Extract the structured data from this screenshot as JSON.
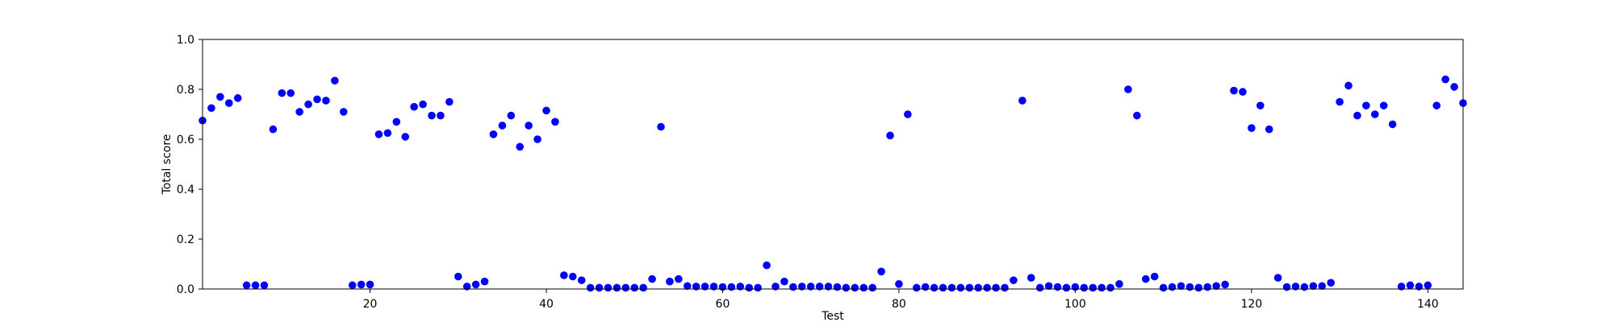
{
  "chart_data": {
    "type": "scatter",
    "title": "",
    "xlabel": "Test",
    "ylabel": "Total score",
    "xlim": [
      1,
      144
    ],
    "ylim": [
      0.0,
      1.0
    ],
    "xticks": [
      20,
      40,
      60,
      80,
      100,
      120,
      140
    ],
    "xtick_labels": [
      "20",
      "40",
      "60",
      "80",
      "100",
      "120",
      "140"
    ],
    "yticks": [
      0.0,
      0.2,
      0.4,
      0.6,
      0.8,
      1.0
    ],
    "ytick_labels": [
      "0.0",
      "0.2",
      "0.4",
      "0.6",
      "0.8",
      "1.0"
    ],
    "grid": false,
    "series": [
      {
        "name": "score",
        "color": "#0000ff",
        "x": [
          1,
          2,
          3,
          4,
          5,
          6,
          7,
          8,
          9,
          10,
          11,
          12,
          13,
          14,
          15,
          16,
          17,
          18,
          19,
          20,
          21,
          22,
          23,
          24,
          25,
          26,
          27,
          28,
          29,
          30,
          31,
          32,
          33,
          34,
          35,
          36,
          37,
          38,
          39,
          40,
          41,
          42,
          43,
          44,
          45,
          46,
          47,
          48,
          49,
          50,
          51,
          52,
          53,
          54,
          55,
          56,
          57,
          58,
          59,
          60,
          61,
          62,
          63,
          64,
          65,
          66,
          67,
          68,
          69,
          70,
          71,
          72,
          73,
          74,
          75,
          76,
          77,
          78,
          79,
          80,
          81,
          82,
          83,
          84,
          85,
          86,
          87,
          88,
          89,
          90,
          91,
          92,
          93,
          94,
          95,
          96,
          97,
          98,
          99,
          100,
          101,
          102,
          103,
          104,
          105,
          106,
          107,
          108,
          109,
          110,
          111,
          112,
          113,
          114,
          115,
          116,
          117,
          118,
          119,
          120,
          121,
          122,
          123,
          124,
          125,
          126,
          127,
          128,
          129,
          130,
          131,
          132,
          133,
          134,
          135,
          136,
          137,
          138,
          139,
          140,
          141,
          142,
          143,
          144
        ],
        "y": [
          0.675,
          0.725,
          0.77,
          0.745,
          0.765,
          0.015,
          0.015,
          0.015,
          0.64,
          0.785,
          0.785,
          0.71,
          0.74,
          0.76,
          0.755,
          0.835,
          0.71,
          0.015,
          0.018,
          0.018,
          0.62,
          0.625,
          0.67,
          0.61,
          0.73,
          0.74,
          0.695,
          0.695,
          0.75,
          0.05,
          0.01,
          0.018,
          0.03,
          0.62,
          0.655,
          0.695,
          0.57,
          0.655,
          0.6,
          0.715,
          0.67,
          0.055,
          0.05,
          0.035,
          0.005,
          0.005,
          0.005,
          0.005,
          0.005,
          0.005,
          0.005,
          0.04,
          0.65,
          0.03,
          0.04,
          0.012,
          0.01,
          0.01,
          0.01,
          0.008,
          0.008,
          0.01,
          0.005,
          0.005,
          0.095,
          0.01,
          0.03,
          0.008,
          0.01,
          0.01,
          0.01,
          0.01,
          0.008,
          0.005,
          0.005,
          0.005,
          0.005,
          0.07,
          0.615,
          0.02,
          0.7,
          0.005,
          0.008,
          0.005,
          0.005,
          0.005,
          0.005,
          0.005,
          0.005,
          0.005,
          0.005,
          0.005,
          0.035,
          0.755,
          0.045,
          0.005,
          0.012,
          0.008,
          0.005,
          0.008,
          0.005,
          0.005,
          0.005,
          0.005,
          0.02,
          0.8,
          0.695,
          0.04,
          0.05,
          0.005,
          0.008,
          0.012,
          0.008,
          0.005,
          0.008,
          0.012,
          0.018,
          0.795,
          0.79,
          0.645,
          0.735,
          0.64,
          0.045,
          0.008,
          0.01,
          0.008,
          0.012,
          0.012,
          0.025,
          0.75,
          0.815,
          0.695,
          0.735,
          0.7,
          0.735,
          0.66,
          0.01,
          0.015,
          0.01,
          0.015,
          0.735,
          0.84,
          0.81,
          0.745
        ]
      }
    ]
  }
}
